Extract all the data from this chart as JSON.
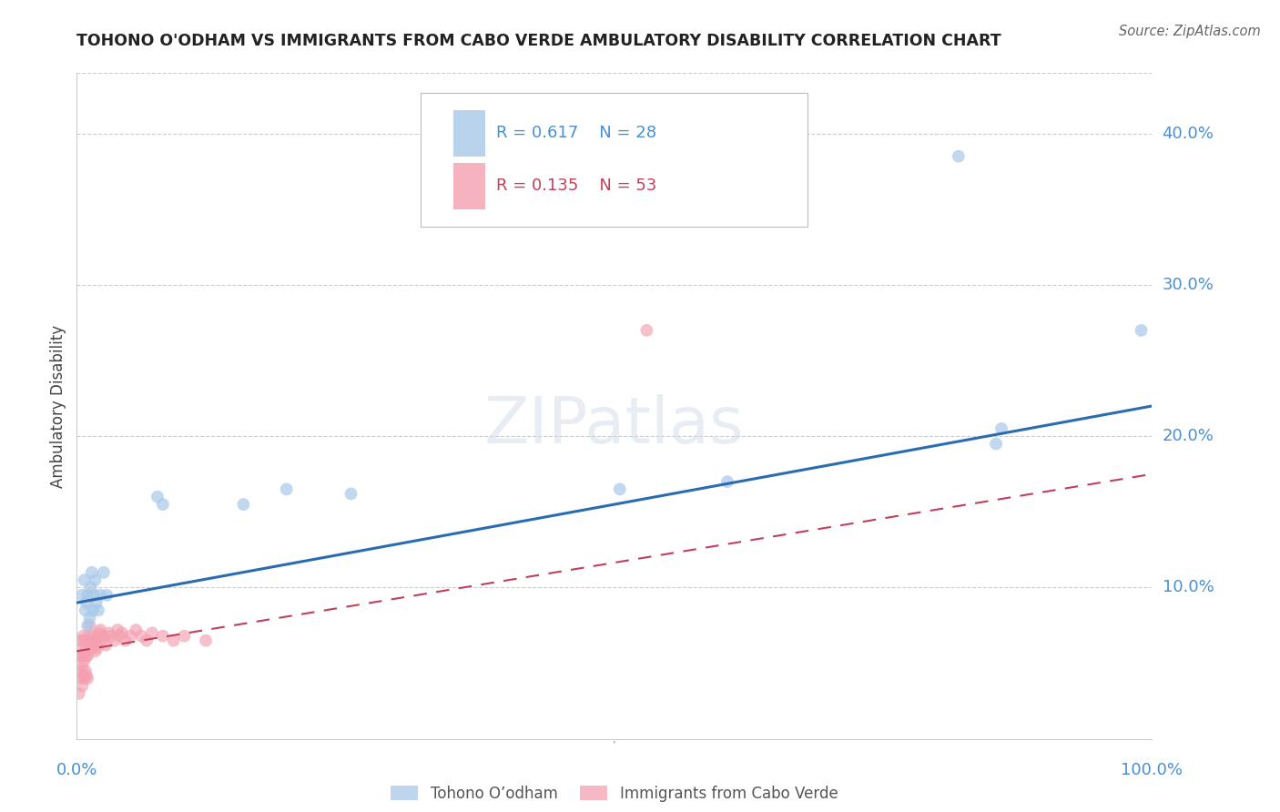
{
  "title": "TOHONO O'ODHAM VS IMMIGRANTS FROM CABO VERDE AMBULATORY DISABILITY CORRELATION CHART",
  "source": "Source: ZipAtlas.com",
  "ylabel": "Ambulatory Disability",
  "background_color": "#ffffff",
  "grid_color": "#cccccc",
  "series1_label": "Tohono O’odham",
  "series1_color": "#a8c8e8",
  "series1_line_color": "#2b6cb0",
  "series1_R": "0.617",
  "series1_N": "28",
  "series2_label": "Immigrants from Cabo Verde",
  "series2_color": "#f4a0b0",
  "series2_line_color": "#c0405a",
  "series2_R": "0.135",
  "series2_N": "53",
  "ytick_labels": [
    "10.0%",
    "20.0%",
    "30.0%",
    "40.0%"
  ],
  "ytick_values": [
    0.1,
    0.2,
    0.3,
    0.4
  ],
  "xlim": [
    0.0,
    1.0
  ],
  "ylim": [
    0.0,
    0.44
  ],
  "tohono_x": [
    0.005,
    0.007,
    0.008,
    0.009,
    0.01,
    0.01,
    0.012,
    0.013,
    0.014,
    0.015,
    0.016,
    0.017,
    0.018,
    0.02,
    0.022,
    0.025,
    0.028,
    0.075,
    0.08,
    0.155,
    0.195,
    0.255,
    0.505,
    0.605,
    0.82,
    0.855,
    0.86,
    0.99
  ],
  "tohono_y": [
    0.095,
    0.105,
    0.085,
    0.09,
    0.075,
    0.095,
    0.08,
    0.1,
    0.11,
    0.085,
    0.095,
    0.105,
    0.09,
    0.085,
    0.095,
    0.11,
    0.095,
    0.16,
    0.155,
    0.155,
    0.165,
    0.162,
    0.165,
    0.17,
    0.385,
    0.195,
    0.205,
    0.27
  ],
  "cabo_verde_x": [
    0.002,
    0.003,
    0.003,
    0.004,
    0.004,
    0.004,
    0.005,
    0.005,
    0.005,
    0.006,
    0.006,
    0.006,
    0.007,
    0.007,
    0.007,
    0.008,
    0.008,
    0.009,
    0.009,
    0.01,
    0.01,
    0.011,
    0.012,
    0.013,
    0.014,
    0.015,
    0.016,
    0.017,
    0.018,
    0.019,
    0.02,
    0.021,
    0.022,
    0.023,
    0.025,
    0.027,
    0.03,
    0.032,
    0.035,
    0.038,
    0.04,
    0.042,
    0.045,
    0.05,
    0.055,
    0.06,
    0.065,
    0.07,
    0.08,
    0.09,
    0.1,
    0.12,
    0.53
  ],
  "cabo_verde_y": [
    0.03,
    0.045,
    0.055,
    0.04,
    0.055,
    0.065,
    0.035,
    0.048,
    0.06,
    0.042,
    0.055,
    0.068,
    0.04,
    0.052,
    0.065,
    0.045,
    0.058,
    0.042,
    0.055,
    0.04,
    0.055,
    0.068,
    0.075,
    0.065,
    0.06,
    0.068,
    0.062,
    0.058,
    0.065,
    0.06,
    0.068,
    0.07,
    0.072,
    0.065,
    0.068,
    0.062,
    0.07,
    0.068,
    0.065,
    0.072,
    0.068,
    0.07,
    0.065,
    0.068,
    0.072,
    0.068,
    0.065,
    0.07,
    0.068,
    0.065,
    0.068,
    0.065,
    0.27
  ],
  "line1_x": [
    0.0,
    1.0
  ],
  "line1_y": [
    0.09,
    0.22
  ],
  "line2_x": [
    0.0,
    1.0
  ],
  "line2_y": [
    0.058,
    0.175
  ]
}
